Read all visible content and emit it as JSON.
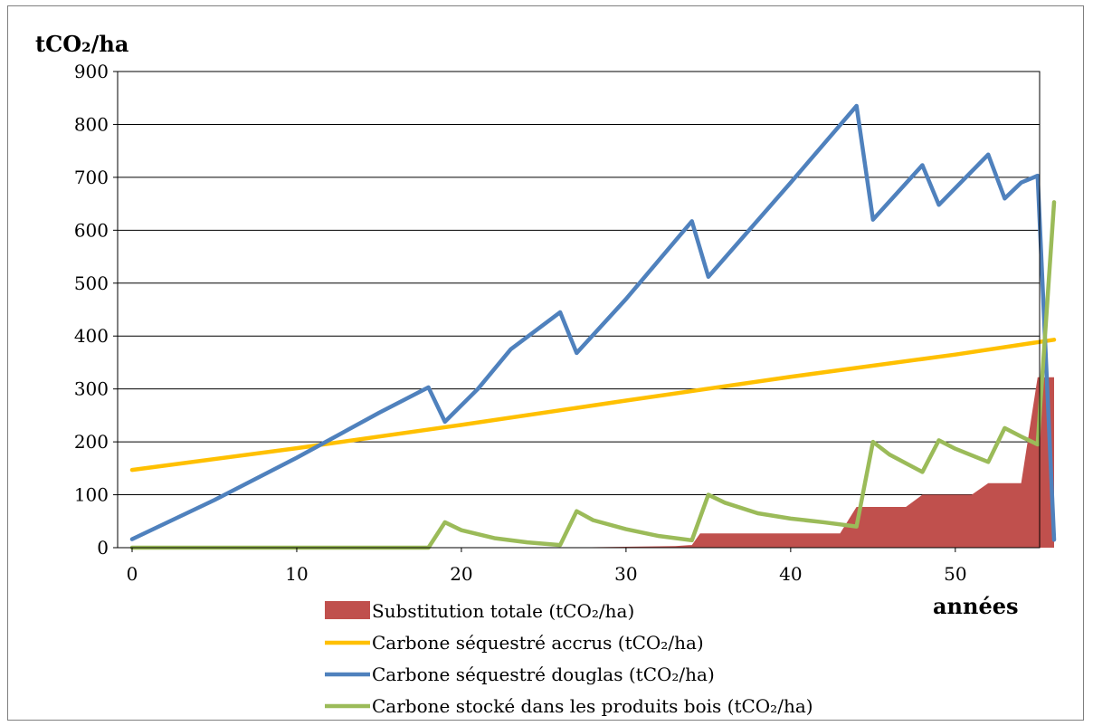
{
  "chart_data": {
    "type": "line",
    "ylabel": "tCO₂/ha",
    "xlabel": "années",
    "xlim": [
      0,
      56
    ],
    "ylim": [
      0,
      900
    ],
    "x_ticks": [
      "0",
      "10",
      "20",
      "30",
      "40",
      "50"
    ],
    "y_ticks": [
      "0",
      "100",
      "200",
      "300",
      "400",
      "500",
      "600",
      "700",
      "800",
      "900"
    ],
    "grid": "horizontal",
    "legend_position": "bottom",
    "series": [
      {
        "name": "Substitution totale (tCO₂/ha)",
        "kind": "area",
        "color": "#c0504d",
        "x": [
          0,
          26,
          33,
          34,
          34.5,
          43,
          44,
          47,
          48,
          51,
          52,
          54,
          55,
          56
        ],
        "y": [
          0,
          0,
          3,
          5,
          27,
          27,
          77,
          77,
          100,
          100,
          122,
          122,
          322,
          322
        ]
      },
      {
        "name": "Carbone séquestré accrus (tCO₂/ha)",
        "kind": "line",
        "color": "#ffc000",
        "x": [
          0,
          10,
          20,
          30,
          40,
          50,
          56
        ],
        "y": [
          147,
          188,
          232,
          278,
          323,
          365,
          393
        ]
      },
      {
        "name": "Carbone séquestré douglas (tCO₂/ha)",
        "kind": "line",
        "color": "#4f81bd",
        "x": [
          0,
          5,
          10,
          15,
          18,
          19,
          21,
          23,
          26,
          27,
          30,
          34,
          35,
          40,
          44,
          45,
          48,
          49,
          52,
          53,
          54,
          55,
          56
        ],
        "y": [
          16,
          90,
          170,
          255,
          303,
          238,
          300,
          375,
          445,
          368,
          470,
          617,
          512,
          690,
          835,
          620,
          723,
          648,
          743,
          660,
          690,
          703,
          15
        ]
      },
      {
        "name": "Carbone stocké dans les produits bois (tCO₂/ha)",
        "kind": "line",
        "color": "#9bbb59",
        "x": [
          0,
          18,
          19,
          20,
          22,
          24,
          26,
          27,
          28,
          30,
          32,
          34,
          35,
          36,
          38,
          40,
          42,
          44,
          45,
          46,
          48,
          49,
          50,
          52,
          53,
          54,
          55,
          56
        ],
        "y": [
          0,
          0,
          48,
          33,
          18,
          10,
          5,
          69,
          52,
          35,
          22,
          14,
          100,
          85,
          65,
          55,
          48,
          40,
          200,
          176,
          143,
          203,
          187,
          162,
          226,
          210,
          195,
          653
        ]
      }
    ]
  }
}
